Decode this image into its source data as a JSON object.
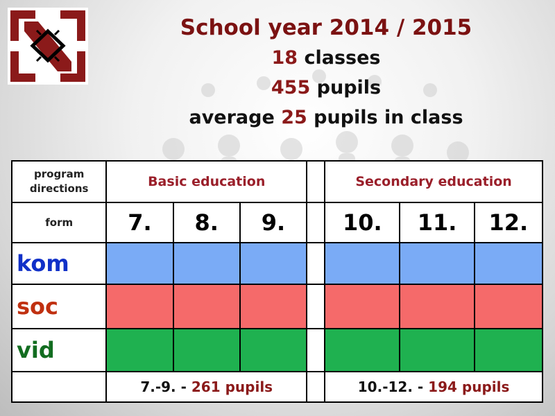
{
  "header": {
    "title": "School year 2014 / 2015",
    "classes_num": "18",
    "classes_text": "classes",
    "pupils_num": "455",
    "pupils_text": "pupils",
    "avg_prefix": "average",
    "avg_num": "25",
    "avg_suffix": "pupils in class"
  },
  "table": {
    "program_label": "program directions",
    "basic_label": "Basic education",
    "secondary_label": "Secondary education",
    "form_label": "form",
    "forms": [
      "7.",
      "8.",
      "9.",
      "10.",
      "11.",
      "12."
    ],
    "programs": [
      "kom",
      "soc",
      "vid"
    ],
    "basic_summary_prefix": "7.-9. -",
    "basic_summary_value": "261 pupils",
    "secondary_summary_prefix": "10.-12. -",
    "secondary_summary_value": "194 pupils"
  },
  "colors": {
    "kom": "#7aabf6",
    "soc": "#f56a6a",
    "vid": "#1fb150",
    "title": "#7b1212",
    "accent": "#8b1a1a"
  }
}
